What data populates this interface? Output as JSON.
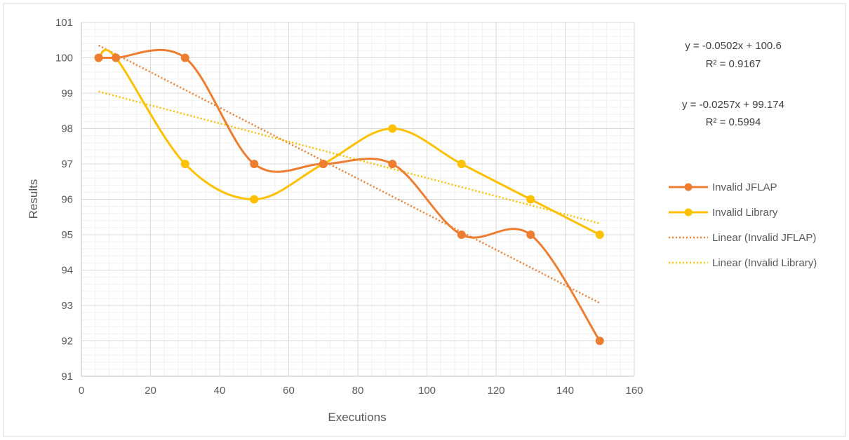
{
  "chart_data": {
    "type": "line",
    "title": "",
    "xlabel": "Executions",
    "ylabel": "Results",
    "xlim": [
      0,
      160
    ],
    "ylim": [
      91,
      101
    ],
    "x_ticks": [
      "0",
      "20",
      "40",
      "60",
      "80",
      "100",
      "120",
      "140",
      "160"
    ],
    "y_ticks": [
      "91",
      "92",
      "93",
      "94",
      "95",
      "96",
      "97",
      "98",
      "99",
      "100",
      "101"
    ],
    "grid": true,
    "minor_grid": true,
    "legend_position": "right",
    "series": [
      {
        "name": "Invalid JFLAP",
        "color": "#ED7D31",
        "smooth": true,
        "x": [
          5,
          10,
          30,
          50,
          70,
          90,
          110,
          130,
          150
        ],
        "y": [
          100,
          100,
          100,
          97,
          97,
          97,
          95,
          95,
          92
        ]
      },
      {
        "name": "Invalid Library",
        "color": "#FFC000",
        "smooth": true,
        "x": [
          5,
          10,
          30,
          50,
          70,
          90,
          110,
          130,
          150
        ],
        "y": [
          100,
          100,
          97,
          96,
          97,
          98,
          97,
          96,
          95
        ]
      }
    ],
    "trendlines": [
      {
        "name": "Linear (Invalid JFLAP)",
        "color": "#ED7D31",
        "slope": -0.0502,
        "intercept": 100.6,
        "x_range": [
          5,
          150
        ],
        "equation": "y = -0.0502x + 100.6",
        "r_squared": "R² = 0.9167"
      },
      {
        "name": "Linear (Invalid Library)",
        "color": "#FFC000",
        "slope": -0.0257,
        "intercept": 99.174,
        "x_range": [
          5,
          150
        ],
        "equation": "y = -0.0257x + 99.174",
        "r_squared": "R² = 0.5994"
      }
    ]
  }
}
